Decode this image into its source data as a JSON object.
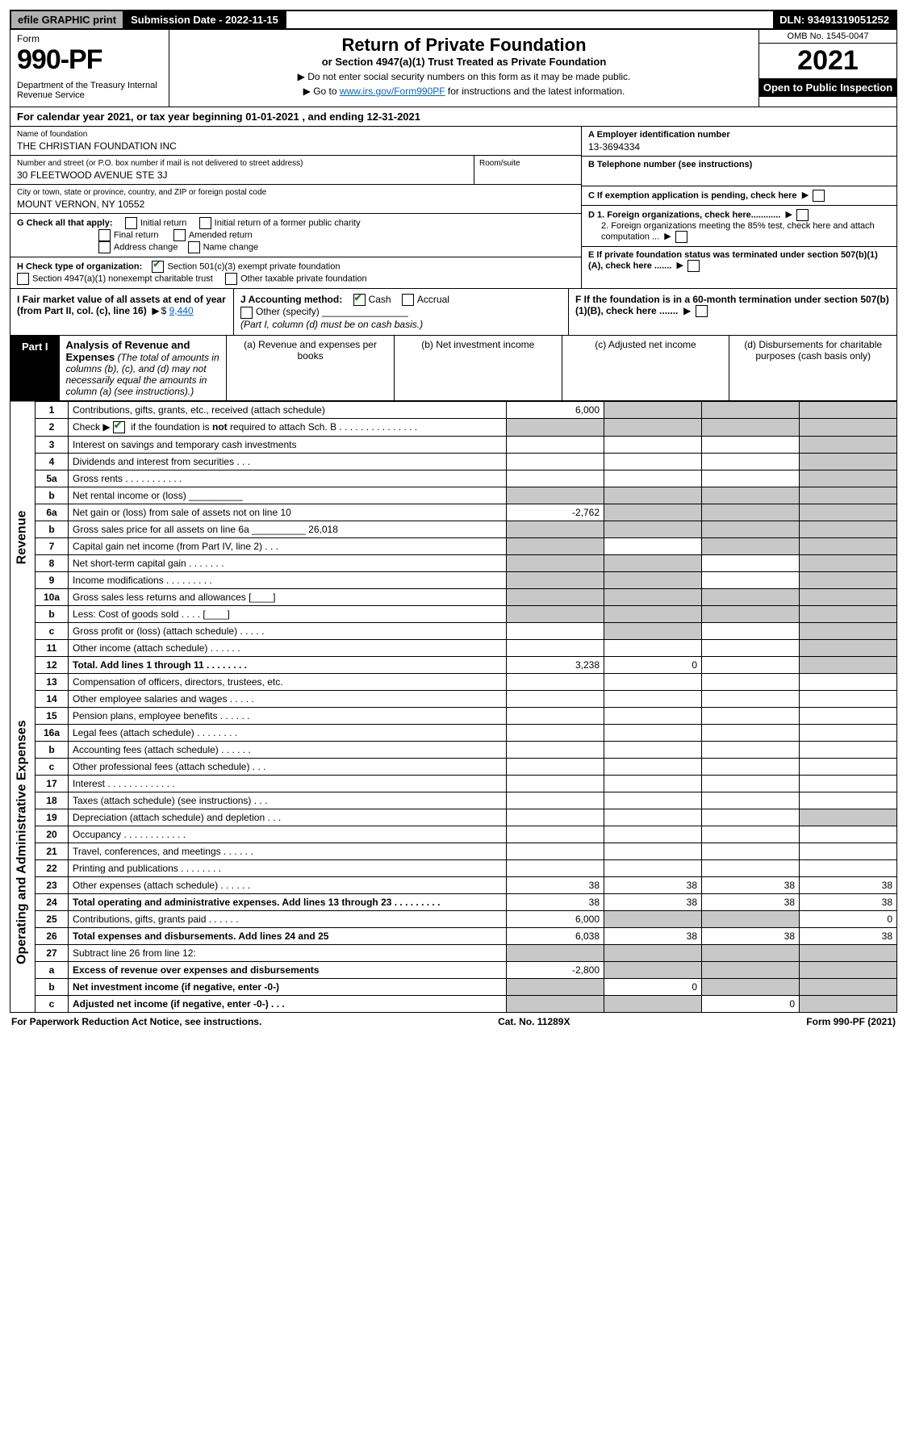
{
  "topbar": {
    "efile": "efile GRAPHIC print",
    "submission": "Submission Date - 2022-11-15",
    "dln": "DLN: 93491319051252"
  },
  "header": {
    "form_label": "Form",
    "form_no": "990-PF",
    "dept": "Department of the Treasury\nInternal Revenue Service",
    "title": "Return of Private Foundation",
    "subtitle": "or Section 4947(a)(1) Trust Treated as Private Foundation",
    "instr1": "▶ Do not enter social security numbers on this form as it may be made public.",
    "instr2_a": "▶ Go to ",
    "instr2_link": "www.irs.gov/Form990PF",
    "instr2_b": " for instructions and the latest information.",
    "omb": "OMB No. 1545-0047",
    "year": "2021",
    "open": "Open to Public Inspection"
  },
  "cal_year": "For calendar year 2021, or tax year beginning 01-01-2021                                        , and ending 12-31-2021",
  "block": {
    "name_label": "Name of foundation",
    "name_val": "THE CHRISTIAN FOUNDATION INC",
    "addr_label": "Number and street (or P.O. box number if mail is not delivered to street address)",
    "addr_val": "30 FLEETWOOD AVENUE STE 3J",
    "room_label": "Room/suite",
    "city_label": "City or town, state or province, country, and ZIP or foreign postal code",
    "city_val": "MOUNT VERNON, NY  10552",
    "a_label": "A Employer identification number",
    "a_val": "13-3694334",
    "b_label": "B Telephone number (see instructions)",
    "c_label": "C If exemption application is pending, check here",
    "d1_label": "D 1. Foreign organizations, check here............",
    "d2_label": "2. Foreign organizations meeting the 85% test, check here and attach computation ...",
    "e_label": "E If private foundation status was terminated under section 507(b)(1)(A), check here .......",
    "f_label": "F If the foundation is in a 60-month termination under section 507(b)(1)(B), check here .......",
    "g_label": "G Check all that apply:",
    "g_opts": [
      "Initial return",
      "Initial return of a former public charity",
      "Final return",
      "Amended return",
      "Address change",
      "Name change"
    ],
    "h_label": "H Check type of organization:",
    "h_opt1": "Section 501(c)(3) exempt private foundation",
    "h_opt2": "Section 4947(a)(1) nonexempt charitable trust",
    "h_opt3": "Other taxable private foundation",
    "i_label": "I Fair market value of all assets at end of year (from Part II, col. (c), line 16)",
    "i_val": "9,440",
    "j_label": "J Accounting method:",
    "j_cash": "Cash",
    "j_accrual": "Accrual",
    "j_other": "Other (specify)",
    "j_note": "(Part I, column (d) must be on cash basis.)"
  },
  "part1": {
    "label": "Part I",
    "title": "Analysis of Revenue and Expenses",
    "note": "(The total of amounts in columns (b), (c), and (d) may not necessarily equal the amounts in column (a) (see instructions).)",
    "col_a": "(a) Revenue and expenses per books",
    "col_b": "(b) Net investment income",
    "col_c": "(c) Adjusted net income",
    "col_d": "(d) Disbursements for charitable purposes (cash basis only)"
  },
  "sections": {
    "revenue": "Revenue",
    "opexp": "Operating and Administrative Expenses"
  },
  "rows": [
    {
      "sec": "rev",
      "n": "1",
      "d": "Contributions, gifts, grants, etc., received (attach schedule)",
      "a": "6,000",
      "b": "g",
      "c": "g",
      "dd": "g"
    },
    {
      "sec": "rev",
      "n": "2",
      "d": "Check ▶ [x] if the foundation is not required to attach Sch. B   .   .   .   .   .   .   .   .   .   .   .   .   .   .   .",
      "a": "g",
      "b": "g",
      "c": "g",
      "dd": "g"
    },
    {
      "sec": "rev",
      "n": "3",
      "d": "Interest on savings and temporary cash investments",
      "a": "",
      "b": "",
      "c": "",
      "dd": "g"
    },
    {
      "sec": "rev",
      "n": "4",
      "d": "Dividends and interest from securities   .   .   .",
      "a": "",
      "b": "",
      "c": "",
      "dd": "g"
    },
    {
      "sec": "rev",
      "n": "5a",
      "d": "Gross rents   .   .   .   .   .   .   .   .   .   .   .",
      "a": "",
      "b": "",
      "c": "",
      "dd": "g"
    },
    {
      "sec": "rev",
      "n": "b",
      "d": "Net rental income or (loss) __________",
      "a": "g",
      "b": "g",
      "c": "g",
      "dd": "g"
    },
    {
      "sec": "rev",
      "n": "6a",
      "d": "Net gain or (loss) from sale of assets not on line 10",
      "a": "-2,762",
      "b": "g",
      "c": "g",
      "dd": "g"
    },
    {
      "sec": "rev",
      "n": "b",
      "d": "Gross sales price for all assets on line 6a __________ 26,018",
      "a": "g",
      "b": "g",
      "c": "g",
      "dd": "g"
    },
    {
      "sec": "rev",
      "n": "7",
      "d": "Capital gain net income (from Part IV, line 2)   .   .   .",
      "a": "g",
      "b": "",
      "c": "g",
      "dd": "g"
    },
    {
      "sec": "rev",
      "n": "8",
      "d": "Net short-term capital gain   .   .   .   .   .   .   .",
      "a": "g",
      "b": "g",
      "c": "",
      "dd": "g"
    },
    {
      "sec": "rev",
      "n": "9",
      "d": "Income modifications   .   .   .   .   .   .   .   .   .",
      "a": "g",
      "b": "g",
      "c": "",
      "dd": "g"
    },
    {
      "sec": "rev",
      "n": "10a",
      "d": "Gross sales less returns and allowances  [____]",
      "a": "g",
      "b": "g",
      "c": "g",
      "dd": "g"
    },
    {
      "sec": "rev",
      "n": "b",
      "d": "Less: Cost of goods sold   .   .   .   .      [____]",
      "a": "g",
      "b": "g",
      "c": "g",
      "dd": "g"
    },
    {
      "sec": "rev",
      "n": "c",
      "d": "Gross profit or (loss) (attach schedule)   .   .   .   .   .",
      "a": "",
      "b": "g",
      "c": "",
      "dd": "g"
    },
    {
      "sec": "rev",
      "n": "11",
      "d": "Other income (attach schedule)   .   .   .   .   .   .",
      "a": "",
      "b": "",
      "c": "",
      "dd": "g"
    },
    {
      "sec": "rev",
      "n": "12",
      "d": "Total. Add lines 1 through 11   .   .   .   .   .   .   .   .",
      "bold": true,
      "a": "3,238",
      "b": "0",
      "c": "",
      "dd": "g"
    },
    {
      "sec": "op",
      "n": "13",
      "d": "Compensation of officers, directors, trustees, etc.",
      "a": "",
      "b": "",
      "c": "",
      "dd": ""
    },
    {
      "sec": "op",
      "n": "14",
      "d": "Other employee salaries and wages   .   .   .   .   .",
      "a": "",
      "b": "",
      "c": "",
      "dd": ""
    },
    {
      "sec": "op",
      "n": "15",
      "d": "Pension plans, employee benefits   .   .   .   .   .   .",
      "a": "",
      "b": "",
      "c": "",
      "dd": ""
    },
    {
      "sec": "op",
      "n": "16a",
      "d": "Legal fees (attach schedule)   .   .   .   .   .   .   .   .",
      "a": "",
      "b": "",
      "c": "",
      "dd": ""
    },
    {
      "sec": "op",
      "n": "b",
      "d": "Accounting fees (attach schedule)   .   .   .   .   .   .",
      "a": "",
      "b": "",
      "c": "",
      "dd": ""
    },
    {
      "sec": "op",
      "n": "c",
      "d": "Other professional fees (attach schedule)   .   .   .",
      "a": "",
      "b": "",
      "c": "",
      "dd": ""
    },
    {
      "sec": "op",
      "n": "17",
      "d": "Interest   .   .   .   .   .   .   .   .   .   .   .   .   .",
      "a": "",
      "b": "",
      "c": "",
      "dd": ""
    },
    {
      "sec": "op",
      "n": "18",
      "d": "Taxes (attach schedule) (see instructions)   .   .   .",
      "a": "",
      "b": "",
      "c": "",
      "dd": ""
    },
    {
      "sec": "op",
      "n": "19",
      "d": "Depreciation (attach schedule) and depletion   .   .   .",
      "a": "",
      "b": "",
      "c": "",
      "dd": "g"
    },
    {
      "sec": "op",
      "n": "20",
      "d": "Occupancy   .   .   .   .   .   .   .   .   .   .   .   .",
      "a": "",
      "b": "",
      "c": "",
      "dd": ""
    },
    {
      "sec": "op",
      "n": "21",
      "d": "Travel, conferences, and meetings   .   .   .   .   .   .",
      "a": "",
      "b": "",
      "c": "",
      "dd": ""
    },
    {
      "sec": "op",
      "n": "22",
      "d": "Printing and publications   .   .   .   .   .   .   .   .",
      "a": "",
      "b": "",
      "c": "",
      "dd": ""
    },
    {
      "sec": "op",
      "n": "23",
      "d": "Other expenses (attach schedule)   .   .   .   .   .   .",
      "a": "38",
      "b": "38",
      "c": "38",
      "dd": "38"
    },
    {
      "sec": "op",
      "n": "24",
      "d": "Total operating and administrative expenses. Add lines 13 through 23   .   .   .   .   .   .   .   .   .",
      "bold": true,
      "a": "38",
      "b": "38",
      "c": "38",
      "dd": "38"
    },
    {
      "sec": "op",
      "n": "25",
      "d": "Contributions, gifts, grants paid   .   .   .   .   .   .",
      "a": "6,000",
      "b": "g",
      "c": "g",
      "dd": "0"
    },
    {
      "sec": "op",
      "n": "26",
      "d": "Total expenses and disbursements. Add lines 24 and 25",
      "bold": true,
      "a": "6,038",
      "b": "38",
      "c": "38",
      "dd": "38"
    },
    {
      "sec": "op",
      "n": "27",
      "d": "Subtract line 26 from line 12:",
      "a": "g",
      "b": "g",
      "c": "g",
      "dd": "g"
    },
    {
      "sec": "op",
      "n": "a",
      "d": "Excess of revenue over expenses and disbursements",
      "bold": true,
      "a": "-2,800",
      "b": "g",
      "c": "g",
      "dd": "g"
    },
    {
      "sec": "op",
      "n": "b",
      "d": "Net investment income (if negative, enter -0-)",
      "bold": true,
      "a": "g",
      "b": "0",
      "c": "g",
      "dd": "g"
    },
    {
      "sec": "op",
      "n": "c",
      "d": "Adjusted net income (if negative, enter -0-)   .   .   .",
      "bold": true,
      "a": "g",
      "b": "g",
      "c": "0",
      "dd": "g"
    }
  ],
  "footer": {
    "left": "For Paperwork Reduction Act Notice, see instructions.",
    "mid": "Cat. No. 11289X",
    "right": "Form 990-PF (2021)"
  },
  "colors": {
    "grey": "#c8c8c8",
    "link": "#0066cc",
    "check": "#2a7a2a"
  }
}
